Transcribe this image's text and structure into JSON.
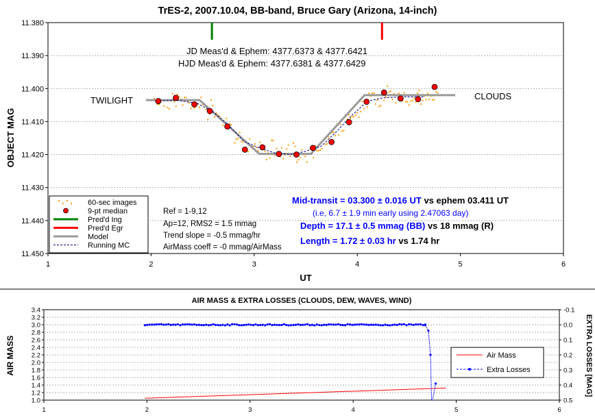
{
  "chart_data": [
    {
      "type": "scatter",
      "title": "TrES-2, 2007.10.04, BB-band, Bruce Gary (Arizona, 14-inch)",
      "xlabel": "UT",
      "ylabel": "OBJECT MAG",
      "xlim": [
        1,
        6
      ],
      "ylim": [
        11.38,
        11.45
      ],
      "y_inverted": true,
      "x_ticks": [
        "1",
        "2",
        "3",
        "4",
        "5",
        "6"
      ],
      "y_ticks": [
        "11.380",
        "11.390",
        "11.400",
        "11.410",
        "11.420",
        "11.430",
        "11.440",
        "11.450"
      ],
      "annotations": {
        "jd": "JD Meas'd & Ephem: 4377.6373 & 4377.6421",
        "hjd": "HJD Meas'd & Ephem: 4377.6381 & 4377.6429",
        "twilight": "TWILIGHT",
        "clouds": "CLOUDS",
        "ref": "Ref = 1-9,12",
        "ap": "Ap=12, RMS2 = 1.5 mmag",
        "trend": "Trend slope = -0.5 mmag/hr",
        "airmass_coeff": "AirMass coeff = -0 mmag/AirMass",
        "mid_prefix": "Mid-transit = 03.300 ± 0.016 UT",
        "mid_suffix": " vs ephem 03.411 UT",
        "early": "(i.e, 6.7 ± 1.9 min early using 2.47063 day)",
        "depth_prefix": "Depth = 17.1 ± 0.5 mmag (BB)",
        "depth_suffix": " vs 18 mmag (R)",
        "length_prefix": "Length = 1.72 ± 0.03 hr",
        "length_suffix": " vs 1.74 hr"
      },
      "colors": {
        "raw": "#ff9900",
        "median": "#ff0000",
        "ingress": "#008000",
        "egress": "#ff0000",
        "model": "#999999",
        "running": "#000080",
        "blue_text": "#0000ff"
      },
      "legend": [
        "60-sec images",
        "9-pt median",
        "Pred'd Ing",
        "Pred'd Egr",
        "Model",
        "Running MC"
      ],
      "legend_position": "bottom-left",
      "predicted_ingress_ut": 2.59,
      "predicted_egress_ut": 4.24,
      "series": [
        {
          "name": "9-pt median",
          "x": [
            2.07,
            2.24,
            2.42,
            2.57,
            2.74,
            2.91,
            3.08,
            3.24,
            3.41,
            3.57,
            3.75,
            3.92,
            4.09,
            4.26,
            4.42,
            4.59,
            4.75
          ],
          "y": [
            11.4038,
            11.4028,
            11.4048,
            11.4068,
            11.4115,
            11.4185,
            11.4178,
            11.4198,
            11.42,
            11.418,
            11.4162,
            11.4102,
            11.404,
            11.4012,
            11.403,
            11.4032,
            11.3995
          ]
        },
        {
          "name": "Model",
          "x": [
            1.95,
            2.47,
            3.05,
            3.55,
            4.07,
            4.95
          ],
          "y": [
            11.4035,
            11.4035,
            11.4198,
            11.4198,
            11.402,
            11.402
          ]
        },
        {
          "name": "Running MC",
          "x": [
            2.05,
            2.25,
            2.45,
            2.6,
            2.75,
            2.9,
            3.05,
            3.2,
            3.35,
            3.5,
            3.65,
            3.8,
            3.95,
            4.1,
            4.25,
            4.45,
            4.65
          ],
          "y": [
            11.4038,
            11.4035,
            11.4045,
            11.407,
            11.411,
            11.416,
            11.418,
            11.4195,
            11.42,
            11.419,
            11.4175,
            11.413,
            11.408,
            11.4038,
            11.4028,
            11.4025,
            11.4025
          ]
        }
      ]
    },
    {
      "type": "line",
      "title": "AIR MASS & EXTRA LOSSES (CLOUDS, DEW, WAVES, WIND)",
      "xlabel": "",
      "ylabel": "AIR MASS",
      "y2label": "EXTRA LOSSES [MAG]",
      "xlim": [
        1,
        6
      ],
      "ylim": [
        1.0,
        3.4
      ],
      "y2lim": [
        -0.1,
        0.5
      ],
      "x_ticks": [
        "1",
        "2",
        "3",
        "4",
        "5",
        "6"
      ],
      "y_ticks": [
        "1.0",
        "1.2",
        "1.4",
        "1.6",
        "1.8",
        "2.0",
        "2.2",
        "2.4",
        "2.6",
        "2.8",
        "3.0",
        "3.2",
        "3.4"
      ],
      "y2_ticks": [
        "-0.1",
        "0.0",
        "0.1",
        "0.2",
        "0.3",
        "0.4",
        "0.5"
      ],
      "legend": [
        "Air Mass",
        "Extra Losses"
      ],
      "legend_position": "right",
      "series": [
        {
          "name": "Air Mass",
          "x": [
            1.98,
            4.9
          ],
          "y": [
            1.05,
            1.32
          ]
        },
        {
          "name": "Extra Losses",
          "x": [
            1.98,
            2.2,
            2.6,
            3.0,
            3.4,
            3.8,
            4.2,
            4.6,
            4.7,
            4.73,
            4.75,
            4.76,
            4.77,
            4.8
          ],
          "y": [
            0.0,
            -0.002,
            0.001,
            -0.002,
            0.0,
            -0.002,
            0.001,
            0.0,
            0.003,
            0.04,
            0.2,
            0.5,
            0.5,
            0.39
          ]
        }
      ]
    }
  ]
}
